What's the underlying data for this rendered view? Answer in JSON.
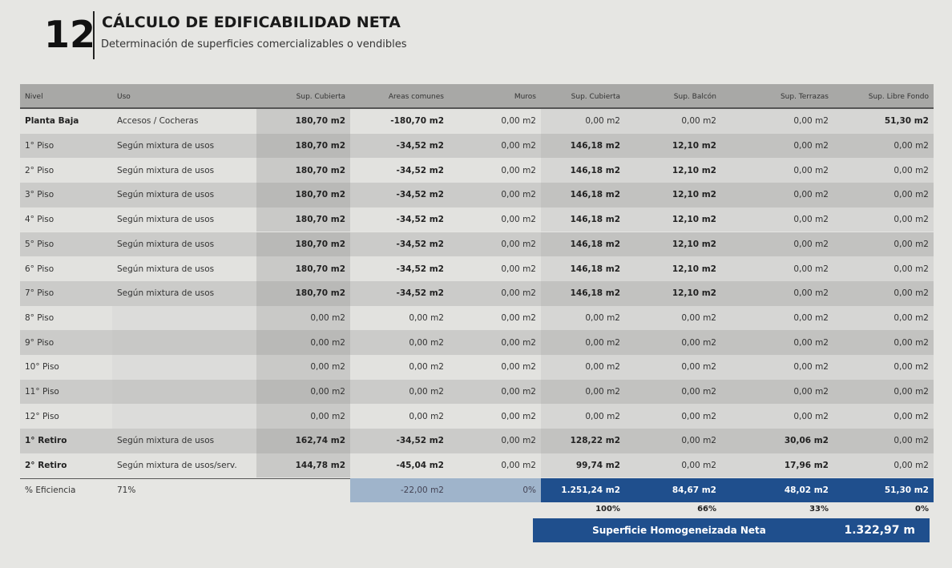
{
  "header": {
    "number": "12",
    "title": "CÁLCULO DE EDIFICABILIDAD NETA",
    "subtitle": "Determinación de superficies comercializables o vendibles"
  },
  "table": {
    "columns": [
      "Nivel",
      "Uso",
      "Sup. Cubierta",
      "Areas comunes",
      "Muros",
      "Sup. Cubierta",
      "Sup. Balcón",
      "Sup. Terrazas",
      "Sup. Libre Fondo"
    ],
    "rows": [
      [
        "Planta Baja",
        "Accesos / Cocheras",
        "180,70 m2",
        "-180,70 m2",
        "0,00 m2",
        "0,00 m2",
        "0,00 m2",
        "0,00 m2",
        "51,30 m2"
      ],
      [
        "1° Piso",
        "Según mixtura de usos",
        "180,70 m2",
        "-34,52 m2",
        "0,00 m2",
        "146,18 m2",
        "12,10 m2",
        "0,00 m2",
        "0,00 m2"
      ],
      [
        "2° Piso",
        "Según mixtura de usos",
        "180,70 m2",
        "-34,52 m2",
        "0,00 m2",
        "146,18 m2",
        "12,10 m2",
        "0,00 m2",
        "0,00 m2"
      ],
      [
        "3° Piso",
        "Según mixtura de usos",
        "180,70 m2",
        "-34,52 m2",
        "0,00 m2",
        "146,18 m2",
        "12,10 m2",
        "0,00 m2",
        "0,00 m2"
      ],
      [
        "4° Piso",
        "Según mixtura de usos",
        "180,70 m2",
        "-34,52 m2",
        "0,00 m2",
        "146,18 m2",
        "12,10 m2",
        "0,00 m2",
        "0,00 m2"
      ],
      [
        "5° Piso",
        "Según mixtura de usos",
        "180,70 m2",
        "-34,52 m2",
        "0,00 m2",
        "146,18 m2",
        "12,10 m2",
        "0,00 m2",
        "0,00 m2"
      ],
      [
        "6° Piso",
        "Según mixtura de usos",
        "180,70 m2",
        "-34,52 m2",
        "0,00 m2",
        "146,18 m2",
        "12,10 m2",
        "0,00 m2",
        "0,00 m2"
      ],
      [
        "7° Piso",
        "Según mixtura de usos",
        "180,70 m2",
        "-34,52 m2",
        "0,00 m2",
        "146,18 m2",
        "12,10 m2",
        "0,00 m2",
        "0,00 m2"
      ],
      [
        "8° Piso",
        null,
        "0,00 m2",
        "0,00 m2",
        "0,00 m2",
        "0,00 m2",
        "0,00 m2",
        "0,00 m2",
        "0,00 m2"
      ],
      [
        "9° Piso",
        null,
        "0,00 m2",
        "0,00 m2",
        "0,00 m2",
        "0,00 m2",
        "0,00 m2",
        "0,00 m2",
        "0,00 m2"
      ],
      [
        "10° Piso",
        null,
        "0,00 m2",
        "0,00 m2",
        "0,00 m2",
        "0,00 m2",
        "0,00 m2",
        "0,00 m2",
        "0,00 m2"
      ],
      [
        "11° Piso",
        null,
        "0,00 m2",
        "0,00 m2",
        "0,00 m2",
        "0,00 m2",
        "0,00 m2",
        "0,00 m2",
        "0,00 m2"
      ],
      [
        "12° Piso",
        null,
        "0,00 m2",
        "0,00 m2",
        "0,00 m2",
        "0,00 m2",
        "0,00 m2",
        "0,00 m2",
        "0,00 m2"
      ],
      [
        "1° Retiro",
        "Según mixtura de usos",
        "162,74 m2",
        "-34,52 m2",
        "0,00 m2",
        "128,22 m2",
        "0,00 m2",
        "30,06 m2",
        "0,00 m2"
      ],
      [
        "2° Retiro",
        "Según mixtura de usos/serv.",
        "144,78 m2",
        "-45,04 m2",
        "0,00 m2",
        "99,74 m2",
        "0,00 m2",
        "17,96 m2",
        "0,00 m2"
      ]
    ],
    "footer": [
      "% Eficiencia",
      "71%",
      "-22,00 m2",
      "0%",
      "1.251,24 m2",
      "84,67 m2",
      "48,02 m2",
      "51,30 m2"
    ],
    "percentages": [
      "100%",
      "66%",
      "33%",
      "0%"
    ]
  },
  "summary": {
    "label": "Superficie Homogeneizada Neta",
    "value": "1.322,97 m"
  }
}
